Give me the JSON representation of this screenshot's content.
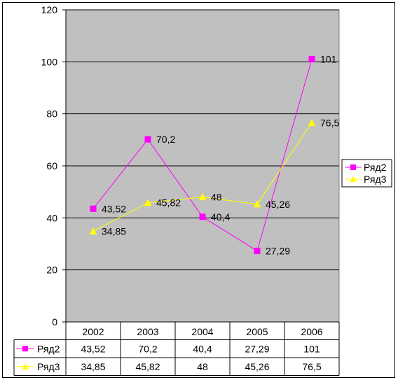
{
  "chart_data": {
    "type": "line",
    "categories": [
      "2002",
      "2003",
      "2004",
      "2005",
      "2006"
    ],
    "series": [
      {
        "name": "Ряд2",
        "values": [
          43.52,
          70.2,
          40.4,
          27.29,
          101
        ],
        "labels": [
          "43,52",
          "70,2",
          "40,4",
          "27,29",
          "101"
        ],
        "color": "#ff00ff",
        "marker": "square"
      },
      {
        "name": "Ряд3",
        "values": [
          34.85,
          45.82,
          48,
          45.26,
          76.5
        ],
        "labels": [
          "34,85",
          "45,82",
          "48",
          "45,26",
          "76,5"
        ],
        "color": "#ffff00",
        "marker": "triangle"
      }
    ],
    "yticks": [
      "0",
      "20",
      "40",
      "60",
      "80",
      "100",
      "120"
    ],
    "ylim": [
      0,
      120
    ],
    "grid": true,
    "legend_position": "right",
    "data_table": true,
    "plot_background": "#c0c0c0"
  }
}
